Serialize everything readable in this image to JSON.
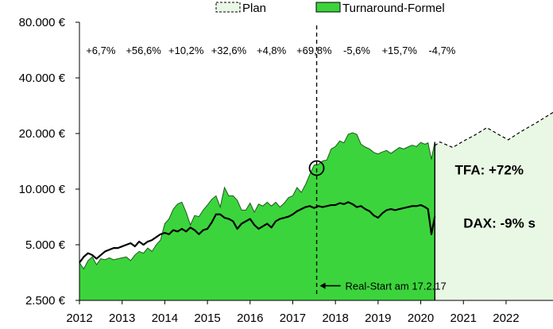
{
  "chart_data": {
    "type": "area",
    "title": "",
    "xlabel": "",
    "ylabel": "",
    "y_scale": "log",
    "ylim": [
      2500,
      80000
    ],
    "xlim": [
      2012,
      2023.1
    ],
    "y_ticks": [
      {
        "value": 2500,
        "label": "2.500 €"
      },
      {
        "value": 5000,
        "label": "5.000 €"
      },
      {
        "value": 10000,
        "label": "10.000 €"
      },
      {
        "value": 20000,
        "label": "20.000 €"
      },
      {
        "value": 40000,
        "label": "40.000 €"
      },
      {
        "value": 80000,
        "label": "80.000 €"
      }
    ],
    "x_ticks": [
      {
        "value": 2012,
        "label": "2012"
      },
      {
        "value": 2013,
        "label": "2013"
      },
      {
        "value": 2014,
        "label": "2014"
      },
      {
        "value": 2015,
        "label": "2015"
      },
      {
        "value": 2016,
        "label": "2016"
      },
      {
        "value": 2017,
        "label": "2017"
      },
      {
        "value": 2018,
        "label": "2018"
      },
      {
        "value": 2019,
        "label": "2019"
      },
      {
        "value": 2020,
        "label": "2020"
      },
      {
        "value": 2021,
        "label": "2021"
      },
      {
        "value": 2022,
        "label": "2022"
      }
    ],
    "grid": "vertical",
    "legend": {
      "position": "top",
      "items": [
        {
          "label": "Plan",
          "color": "#e8f8e4",
          "style": "dashed"
        },
        {
          "label": "Turnaround-Formel",
          "color": "#3cd43c",
          "style": "solid"
        }
      ]
    },
    "annual_returns": [
      {
        "x": 2012.5,
        "label": "+6,7%"
      },
      {
        "x": 2013.5,
        "label": "+56,6%"
      },
      {
        "x": 2014.5,
        "label": "+10,2%"
      },
      {
        "x": 2015.5,
        "label": "+32,6%"
      },
      {
        "x": 2016.5,
        "label": "+4,8%"
      },
      {
        "x": 2017.5,
        "label": "+69,8%"
      },
      {
        "x": 2018.5,
        "label": "-5,6%"
      },
      {
        "x": 2019.5,
        "label": "+15,7%"
      },
      {
        "x": 2020.5,
        "label": "-4,7%"
      }
    ],
    "summary_labels": [
      {
        "text": "TFA: +72%",
        "x": 2020.8,
        "y": 12000
      },
      {
        "text": "DAX: -9% s",
        "x": 2021.0,
        "y": 6200
      }
    ],
    "annotation": {
      "text": "Real-Start am 17.2.17",
      "x": 2017.56,
      "arrow_y": 3000
    },
    "highlight_point": {
      "x": 2017.56,
      "y": 13000
    },
    "series": [
      {
        "name": "Turnaround-Formel",
        "color": "#3cd43c",
        "x": [
          2012.0,
          2012.1,
          2012.2,
          2012.3,
          2012.4,
          2012.5,
          2012.6,
          2012.7,
          2012.8,
          2012.9,
          2013.0,
          2013.1,
          2013.2,
          2013.3,
          2013.4,
          2013.5,
          2013.6,
          2013.7,
          2013.8,
          2013.9,
          2014.0,
          2014.1,
          2014.2,
          2014.3,
          2014.4,
          2014.5,
          2014.6,
          2014.7,
          2014.8,
          2014.9,
          2015.0,
          2015.1,
          2015.2,
          2015.3,
          2015.4,
          2015.5,
          2015.6,
          2015.7,
          2015.8,
          2015.9,
          2016.0,
          2016.1,
          2016.2,
          2016.3,
          2016.4,
          2016.5,
          2016.6,
          2016.7,
          2016.8,
          2016.9,
          2017.0,
          2017.1,
          2017.2,
          2017.3,
          2017.4,
          2017.5,
          2017.6,
          2017.7,
          2017.8,
          2017.9,
          2018.0,
          2018.1,
          2018.2,
          2018.3,
          2018.4,
          2018.5,
          2018.6,
          2018.7,
          2018.8,
          2018.9,
          2019.0,
          2019.1,
          2019.2,
          2019.3,
          2019.4,
          2019.5,
          2019.6,
          2019.7,
          2019.8,
          2019.9,
          2020.0,
          2020.1,
          2020.17,
          2020.25,
          2020.33
        ],
        "values": [
          4000,
          3700,
          4100,
          4300,
          3900,
          4200,
          4150,
          4250,
          4150,
          4200,
          4250,
          4300,
          4100,
          4400,
          4600,
          4500,
          4800,
          4600,
          5000,
          5300,
          6500,
          6900,
          7800,
          8300,
          8500,
          7500,
          6400,
          7200,
          7100,
          7700,
          8200,
          8800,
          9200,
          8000,
          10200,
          9200,
          9200,
          8700,
          7700,
          7700,
          8400,
          7500,
          8300,
          8100,
          8500,
          8100,
          8500,
          8000,
          8400,
          9000,
          9200,
          10200,
          9600,
          10600,
          12000,
          13500,
          13600,
          14200,
          14400,
          16500,
          17000,
          18200,
          17800,
          19800,
          20200,
          19800,
          17500,
          16900,
          16500,
          15800,
          15500,
          15900,
          16200,
          15600,
          16200,
          16800,
          16500,
          16900,
          17300,
          17000,
          17900,
          17500,
          17800,
          14500,
          18000
        ]
      },
      {
        "name": "DAX",
        "color": "#000000",
        "x": [
          2012.0,
          2012.1,
          2012.2,
          2012.3,
          2012.4,
          2012.5,
          2012.6,
          2012.7,
          2012.8,
          2012.9,
          2013.0,
          2013.1,
          2013.2,
          2013.3,
          2013.4,
          2013.5,
          2013.6,
          2013.7,
          2013.8,
          2013.9,
          2014.0,
          2014.1,
          2014.2,
          2014.3,
          2014.4,
          2014.5,
          2014.6,
          2014.7,
          2014.8,
          2014.9,
          2015.0,
          2015.1,
          2015.2,
          2015.3,
          2015.4,
          2015.5,
          2015.6,
          2015.7,
          2015.8,
          2015.9,
          2016.0,
          2016.1,
          2016.2,
          2016.3,
          2016.4,
          2016.5,
          2016.6,
          2016.7,
          2016.8,
          2016.9,
          2017.0,
          2017.1,
          2017.2,
          2017.3,
          2017.4,
          2017.5,
          2017.6,
          2017.7,
          2017.8,
          2017.9,
          2018.0,
          2018.1,
          2018.2,
          2018.3,
          2018.4,
          2018.5,
          2018.6,
          2018.7,
          2018.8,
          2018.9,
          2019.0,
          2019.1,
          2019.2,
          2019.3,
          2019.4,
          2019.5,
          2019.6,
          2019.7,
          2019.8,
          2019.9,
          2020.0,
          2020.1,
          2020.17,
          2020.25,
          2020.33
        ],
        "values": [
          4000,
          4300,
          4500,
          4400,
          4200,
          4400,
          4600,
          4700,
          4800,
          4800,
          4900,
          5000,
          5100,
          4900,
          5200,
          5000,
          5200,
          5300,
          5500,
          5700,
          5800,
          5700,
          6000,
          5900,
          6100,
          5900,
          6200,
          6000,
          5700,
          6000,
          6100,
          6600,
          7300,
          7300,
          7000,
          6900,
          6700,
          6100,
          6500,
          6700,
          6900,
          6400,
          6100,
          6300,
          6500,
          6200,
          6700,
          6900,
          7000,
          7100,
          7300,
          7600,
          7800,
          8000,
          8100,
          7900,
          8100,
          8000,
          8100,
          8200,
          8200,
          8400,
          8300,
          8500,
          8300,
          8000,
          8100,
          7800,
          7600,
          7200,
          7000,
          7400,
          7700,
          7800,
          7700,
          7800,
          7900,
          8000,
          8100,
          8100,
          8200,
          8000,
          7800,
          5700,
          7100
        ]
      },
      {
        "name": "Plan",
        "color": "#e8f8e4",
        "style": "dashed",
        "x": [
          2020.33,
          2020.45,
          2020.75,
          2021.0,
          2021.25,
          2021.55,
          2021.85,
          2022.05,
          2022.35,
          2022.7,
          2023.1
        ],
        "values": [
          17200,
          18000,
          16800,
          18200,
          19500,
          21500,
          19600,
          18500,
          20500,
          22800,
          26000
        ]
      }
    ]
  }
}
